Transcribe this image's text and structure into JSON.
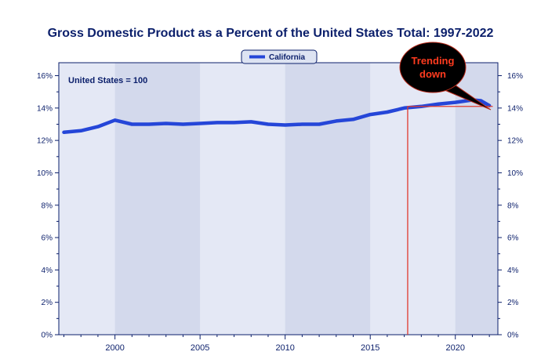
{
  "chart_data": {
    "type": "line",
    "title": "Gross Domestic Product as a Percent of the United States Total: 1997-2022",
    "xlabel": "",
    "ylabel": "",
    "xlim": [
      1996.7,
      2022.5
    ],
    "ylim": [
      0,
      16.8
    ],
    "x_ticks": [
      2000,
      2005,
      2010,
      2015,
      2020
    ],
    "y_ticks": [
      0,
      2,
      4,
      6,
      8,
      10,
      12,
      14,
      16
    ],
    "y_tick_labels": [
      "0%",
      "2%",
      "4%",
      "6%",
      "8%",
      "10%",
      "12%",
      "14%",
      "16%"
    ],
    "grid": false,
    "legend": "top-center",
    "note": "United States = 100",
    "series": [
      {
        "name": "California",
        "color": "#2546d8",
        "x": [
          1997,
          1998,
          1999,
          2000,
          2001,
          2002,
          2003,
          2004,
          2005,
          2006,
          2007,
          2008,
          2009,
          2010,
          2011,
          2012,
          2013,
          2014,
          2015,
          2016,
          2017,
          2018,
          2019,
          2020,
          2021,
          2021.5,
          2022
        ],
        "values": [
          12.5,
          12.6,
          12.85,
          13.25,
          13.0,
          13.0,
          13.05,
          13.0,
          13.05,
          13.1,
          13.1,
          13.15,
          13.0,
          12.95,
          13.0,
          13.0,
          13.2,
          13.3,
          13.6,
          13.75,
          14.0,
          14.1,
          14.25,
          14.35,
          14.5,
          14.45,
          14.15
        ]
      }
    ],
    "annotations": [
      {
        "type": "callout",
        "text_lines": [
          "Trending",
          "down"
        ],
        "fill": "#000000",
        "text_color": "#ff3b1f"
      },
      {
        "type": "reference-line",
        "color": "#e03a2e",
        "x": 2017.2,
        "y": 14.1,
        "x_end": 2022.2
      }
    ]
  }
}
